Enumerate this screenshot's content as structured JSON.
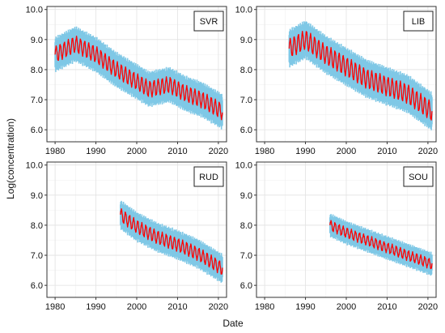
{
  "chart_data": {
    "type": "line",
    "xlabel": "Date",
    "ylabel": "Log(concentration)",
    "xlim": [
      1978,
      2022
    ],
    "ylim": [
      5.6,
      10.1
    ],
    "xticks": [
      1980,
      1990,
      2000,
      2010,
      2020
    ],
    "yticks": [
      "6.0",
      "7.0",
      "8.0",
      "9.0",
      "10.0"
    ],
    "grid": true,
    "colors": {
      "band": "#7fc8e6",
      "line": "#ff0000"
    },
    "panels": [
      {
        "name": "SVR",
        "start": 1980,
        "end": 2021,
        "trend": [
          [
            1980,
            8.5
          ],
          [
            1985,
            8.85
          ],
          [
            1990,
            8.5
          ],
          [
            1995,
            8.0
          ],
          [
            2000,
            7.6
          ],
          [
            2003,
            7.35
          ],
          [
            2008,
            7.5
          ],
          [
            2012,
            7.2
          ],
          [
            2016,
            7.0
          ],
          [
            2021,
            6.6
          ]
        ],
        "band_halfwidth": 0.55,
        "line_halfwidth": 0.25
      },
      {
        "name": "LIB",
        "start": 1986,
        "end": 2021,
        "trend": [
          [
            1986,
            8.7
          ],
          [
            1990,
            9.0
          ],
          [
            1995,
            8.5
          ],
          [
            2000,
            8.1
          ],
          [
            2005,
            7.7
          ],
          [
            2010,
            7.45
          ],
          [
            2015,
            7.2
          ],
          [
            2021,
            6.6
          ]
        ],
        "band_halfwidth": 0.6,
        "line_halfwidth": 0.3
      },
      {
        "name": "RUD",
        "start": 1996,
        "end": 2021,
        "trend": [
          [
            1996,
            8.35
          ],
          [
            2000,
            7.95
          ],
          [
            2005,
            7.6
          ],
          [
            2010,
            7.35
          ],
          [
            2015,
            7.05
          ],
          [
            2021,
            6.55
          ]
        ],
        "band_halfwidth": 0.45,
        "line_halfwidth": 0.2
      },
      {
        "name": "SOU",
        "start": 1996,
        "end": 2021,
        "trend": [
          [
            1996,
            8.0
          ],
          [
            2000,
            7.75
          ],
          [
            2005,
            7.5
          ],
          [
            2010,
            7.25
          ],
          [
            2015,
            7.0
          ],
          [
            2021,
            6.7
          ]
        ],
        "band_halfwidth": 0.35,
        "line_halfwidth": 0.15
      }
    ]
  }
}
